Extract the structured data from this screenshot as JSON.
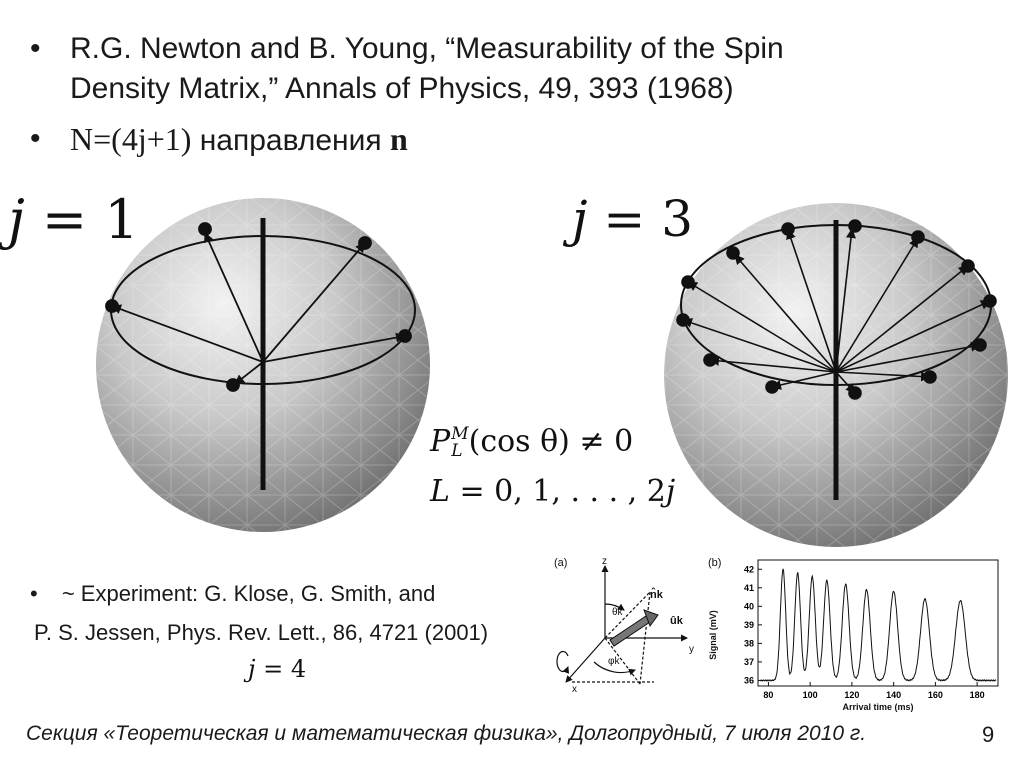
{
  "bullets": [
    {
      "line1": "R.G. Newton and B. Young, “Measurability of the Spin",
      "line2": "Density Matrix,” Annals of Physics, 49, 393 (1968)"
    },
    {
      "formula": "N=(4j+1)",
      "text": " направления ",
      "bold": "n"
    }
  ],
  "spheres": [
    {
      "label_var": "j",
      "label_eq": "= 1"
    },
    {
      "label_var": "j",
      "label_eq": "= 3"
    }
  ],
  "equations": {
    "line1_prefix": "P",
    "line1_sup": "M",
    "line1_sub": "L",
    "line1_rest": "(cos θ) ≠ 0",
    "line2_var": "L",
    "line2_rest": " = 0, 1, . . . , 2",
    "line2_end": "j"
  },
  "experiment": {
    "bullet": "~ Experiment: G. Klose, G. Smith, and",
    "line2": "P. S. Jessen, Phys. Rev. Lett., 86, 4721 (2001)",
    "j_var": "j",
    "j_eq": "= 4"
  },
  "figure_a": {
    "panel_label": "(a)",
    "axis_z": "z",
    "axis_y": "y",
    "axis_x": "x",
    "theta": "θk",
    "phi": "φk",
    "n_hat": "n̂k",
    "u_hat": "ûk"
  },
  "figure_b": {
    "panel_label": "(b)",
    "ylabel": "Signal (mV)",
    "xlabel": "Arrival time (ms)",
    "yticks": [
      "36",
      "37",
      "38",
      "39",
      "40",
      "41",
      "42"
    ],
    "xticks": [
      "80",
      "100",
      "120",
      "140",
      "160",
      "180"
    ]
  },
  "chart_data": {
    "type": "line",
    "title": "",
    "xlabel": "Arrival time (ms)",
    "ylabel": "Signal (mV)",
    "xlim": [
      75,
      190
    ],
    "ylim": [
      35.7,
      42.5
    ],
    "baseline": 36.0,
    "peaks": [
      {
        "x": 87,
        "y": 42.0
      },
      {
        "x": 94,
        "y": 41.8
      },
      {
        "x": 101,
        "y": 41.6
      },
      {
        "x": 108,
        "y": 41.4
      },
      {
        "x": 117,
        "y": 41.2
      },
      {
        "x": 127,
        "y": 40.9
      },
      {
        "x": 140,
        "y": 40.8
      },
      {
        "x": 155,
        "y": 40.4
      },
      {
        "x": 172,
        "y": 40.3
      }
    ]
  },
  "footer": {
    "text": "Секция «Теоретическая и математическая физика», Долгопрудный, 7 июля 2010 г.",
    "page": "9"
  }
}
